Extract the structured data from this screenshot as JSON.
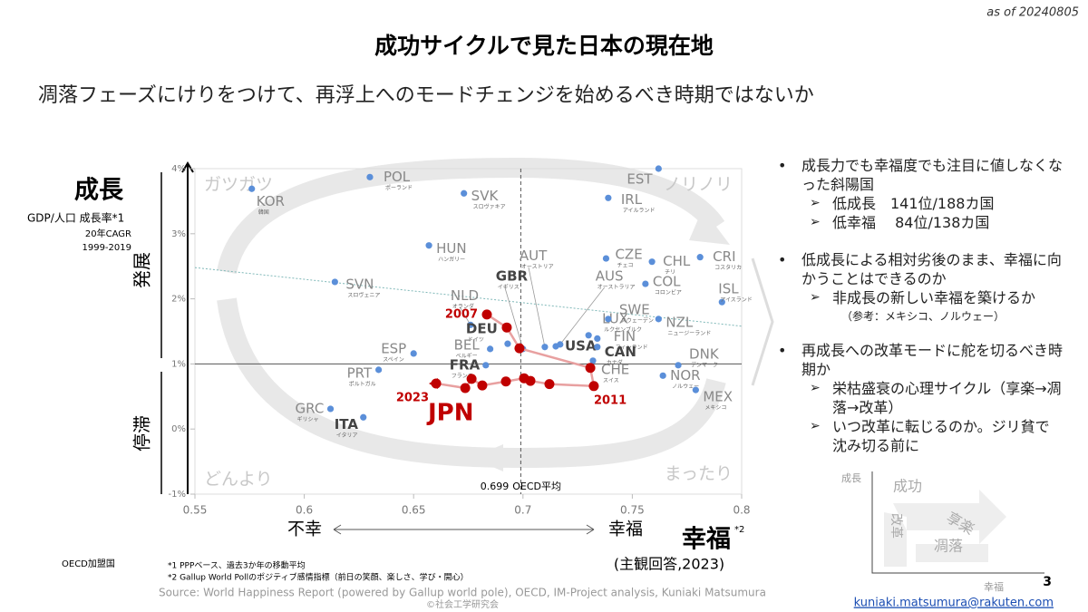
{
  "header": {
    "date": "as of 20240805",
    "title": "成功サイクルで見た日本の現在地",
    "subtitle": "凋落フェーズにけりをつけて、再浮上へのモードチェンジを始めるべき時期ではないか"
  },
  "chart_data": {
    "type": "scatter",
    "y_title": "成長",
    "y_label": "GDP/人口 成長率*1",
    "y_note1": "20年CAGR",
    "y_note2": "1999-2019",
    "y_high": "発展",
    "y_low": "停滞",
    "x_low": "不幸",
    "x_high": "幸福",
    "x_title": "幸福",
    "x_title_note": "*2",
    "x_note": "(主観回答,2023)",
    "quadrants": [
      "ガツガツ",
      "ノリノリ",
      "どんより",
      "まったり"
    ],
    "xlim": [
      0.55,
      0.8
    ],
    "xticks": [
      0.55,
      0.6,
      0.65,
      0.7,
      0.75,
      0.8
    ],
    "ylim": [
      -1,
      4
    ],
    "yticks": [
      {
        "value": -1,
        "label": "-1%"
      },
      {
        "value": 0,
        "label": "0%"
      },
      {
        "value": 1,
        "label": "1%"
      },
      {
        "value": 2,
        "label": "2%"
      },
      {
        "value": 3,
        "label": "3%"
      },
      {
        "value": 4,
        "label": "4%"
      }
    ],
    "oecd_avg": {
      "x": 0.699,
      "label": "OECD平均"
    },
    "reference_y": 1,
    "trend": {
      "x": [
        0.55,
        0.8
      ],
      "y": [
        2.48,
        1.58
      ]
    },
    "point_color": "#5b8fd9",
    "points": [
      {
        "label": "POL",
        "sub": "ポーランド",
        "x": 0.63,
        "y": 3.87
      },
      {
        "label": "KOR",
        "sub": "韓国",
        "x": 0.576,
        "y": 3.69
      },
      {
        "label": "SVK",
        "sub": "スロヴァキア",
        "x": 0.673,
        "y": 3.62
      },
      {
        "label": "HUN",
        "sub": "ハンガリー",
        "x": 0.657,
        "y": 2.82
      },
      {
        "label": "SVN",
        "sub": "スロヴェニア",
        "x": 0.614,
        "y": 2.26
      },
      {
        "label": "ESP",
        "sub": "スペイン",
        "x": 0.65,
        "y": 1.16
      },
      {
        "label": "PRT",
        "sub": "ポルトガル",
        "x": 0.634,
        "y": 0.91
      },
      {
        "label": "GRC",
        "sub": "ギリシャ",
        "x": 0.612,
        "y": 0.31
      },
      {
        "label": "ITA",
        "sub": "イタリア",
        "x": 0.627,
        "y": 0.18
      },
      {
        "label": "EST",
        "x": 0.762,
        "y": 4.0
      },
      {
        "label": "IRL",
        "sub": "アイルランド",
        "x": 0.739,
        "y": 3.55
      },
      {
        "label": "AUT",
        "sub": "オーストリア",
        "x": 0.71,
        "y": 1.26
      },
      {
        "label": "GBR",
        "sub": "イギリス",
        "x": 0.7,
        "y": 1.23
      },
      {
        "label": "NLD",
        "sub": "オランダ",
        "x": 0.676,
        "y": 1.6
      },
      {
        "label": "DEU",
        "sub": "ドイツ",
        "x": 0.693,
        "y": 1.31
      },
      {
        "label": "BEL",
        "sub": "ベルギー",
        "x": 0.685,
        "y": 1.23
      },
      {
        "label": "FRA",
        "sub": "フランス",
        "x": 0.683,
        "y": 0.98
      },
      {
        "label": "AUS",
        "sub": "オーストラリア",
        "x": 0.717,
        "y": 1.3
      },
      {
        "label": "USA",
        "x": 0.715,
        "y": 1.27
      },
      {
        "label": "LUX",
        "sub": "ルクセンブルク",
        "x": 0.73,
        "y": 1.44
      },
      {
        "label": "SWE",
        "sub": "スウェーデン",
        "x": 0.739,
        "y": 1.69
      },
      {
        "label": "FIN",
        "sub": "フィンランド",
        "x": 0.734,
        "y": 1.39
      },
      {
        "label": "CAN",
        "sub": "カナダ",
        "x": 0.734,
        "y": 1.26
      },
      {
        "label": "CHE",
        "sub": "スイス",
        "x": 0.732,
        "y": 1.05
      },
      {
        "label": "CZE",
        "sub": "チェコ",
        "x": 0.738,
        "y": 2.62
      },
      {
        "label": "CHL",
        "sub": "チリ",
        "x": 0.759,
        "y": 2.57
      },
      {
        "label": "CRI",
        "sub": "コスタリカ",
        "x": 0.781,
        "y": 2.64
      },
      {
        "label": "COL",
        "sub": "コロンビア",
        "x": 0.756,
        "y": 2.23
      },
      {
        "label": "ISL",
        "sub": "アイスランド",
        "x": 0.791,
        "y": 1.95
      },
      {
        "label": "NZL",
        "sub": "ニュージーランド",
        "x": 0.762,
        "y": 1.69
      },
      {
        "label": "DNK",
        "sub": "デンマーク",
        "x": 0.771,
        "y": 0.98
      },
      {
        "label": "NOR",
        "sub": "ノルウェー",
        "x": 0.764,
        "y": 0.82
      },
      {
        "label": "MEX",
        "sub": "メキシコ",
        "x": 0.779,
        "y": 0.6
      }
    ],
    "jpn": {
      "name": "JPN",
      "color": "#c00000",
      "x": [
        0.6835,
        0.6926,
        0.6984,
        0.7308,
        0.7324,
        0.7121,
        0.7034,
        0.7005,
        0.6922,
        0.6814,
        0.6765,
        0.6736,
        0.6603
      ],
      "y": [
        1.76,
        1.56,
        1.24,
        0.94,
        0.66,
        0.69,
        0.74,
        0.78,
        0.73,
        0.67,
        0.77,
        0.63,
        0.7
      ],
      "point_labels": [
        "2007",
        null,
        null,
        null,
        "2011",
        null,
        null,
        null,
        null,
        null,
        null,
        null,
        "2023"
      ]
    }
  },
  "bullets": [
    {
      "text": "成長力でも幸福度でも注目に値しなくなった斜陽国",
      "subs": [
        "低成長　141位/188カ国",
        "低幸福　 84位/138カ国"
      ]
    },
    {
      "text": "低成長による相対劣後のまま、幸福に向かうことはできるのか",
      "subs": [
        "非成長の新しい幸福を築けるか"
      ],
      "note": "（参考：メキシコ、ノルウェー）"
    },
    {
      "text": "再成長への改革モードに舵を切るべき時期か",
      "subs": [
        "栄枯盛衰の心理サイクル（享楽→凋落→改革）",
        "いつ改革に転じるのか。ジリ貧で沈み切る前に"
      ]
    }
  ],
  "mini": {
    "y": "成長",
    "x": "幸福",
    "labels": [
      "成功",
      "享楽",
      "凋落",
      "改革"
    ]
  },
  "footer": {
    "members": "OECD加盟国",
    "note1": "*1  PPPベース、過去3か年の移動平均",
    "note2": "*2  Gallup World Pollのポジティブ感情指標（前日の笑顔、楽しさ、学び・開心）",
    "source": "Source: World Happiness Report (powered by Gallup world pole), OECD, IM-Project analysis,  Kuniaki Matsumura",
    "copyright": "©社会工学研究会",
    "page": "3",
    "email": "kuniaki.matsumura@rakuten.com"
  }
}
